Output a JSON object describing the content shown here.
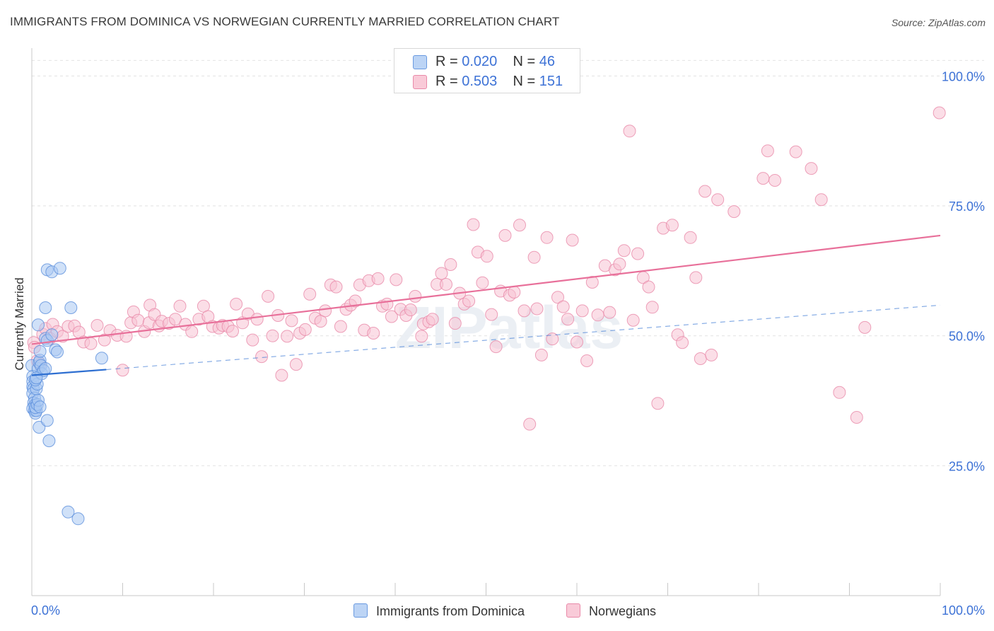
{
  "header": {
    "title": "IMMIGRANTS FROM DOMINICA VS NORWEGIAN CURRENTLY MARRIED CORRELATION CHART",
    "source": "Source: ZipAtlas.com"
  },
  "watermark": "ZIPatlas",
  "legend_top": {
    "rows": [
      {
        "r_label": "R =",
        "r_value": "0.020",
        "n_label": "N =",
        "n_value": "46"
      },
      {
        "r_label": "R =",
        "r_value": "0.503",
        "n_label": "N =",
        "n_value": "151"
      }
    ]
  },
  "legend_bottom": {
    "items": [
      "Immigrants from Dominica",
      "Norwegians"
    ]
  },
  "colors": {
    "blue_fill": "#a9c8f2",
    "blue_stroke": "#5b8fdc",
    "blue_line": "#2e6fd1",
    "pink_fill": "#f7c3d3",
    "pink_stroke": "#e98aa9",
    "pink_line": "#e8709a",
    "axis_label": "#3d72d6",
    "grid": "#e2e2e2"
  },
  "chart_data": {
    "type": "scatter",
    "title": "IMMIGRANTS FROM DOMINICA VS NORWEGIAN CURRENTLY MARRIED CORRELATION CHART",
    "xlabel": "",
    "ylabel": "Currently Married",
    "xlim": [
      0,
      100
    ],
    "ylim": [
      0,
      104
    ],
    "x_tick_labels": [
      "0.0%",
      "100.0%"
    ],
    "y_ticks": [
      25,
      50,
      75,
      100
    ],
    "y_tick_labels": [
      "25.0%",
      "50.0%",
      "75.0%",
      "100.0%"
    ],
    "grid": true,
    "legend_placement": "top-center",
    "series": [
      {
        "name": "Immigrants from Dominica",
        "R": 0.02,
        "N": 46,
        "trend": {
          "x0": 0,
          "y0": 42.4,
          "x1": 8.2,
          "y1": 43.5,
          "dashed_to_x": 100,
          "dashed_to_y": 55.9
        },
        "points": [
          [
            0.0,
            44.3
          ],
          [
            0.1,
            42.2
          ],
          [
            0.1,
            41.2
          ],
          [
            0.1,
            40.2
          ],
          [
            0.2,
            39.8
          ],
          [
            0.1,
            38.9
          ],
          [
            0.3,
            38.0
          ],
          [
            0.2,
            37.1
          ],
          [
            0.3,
            36.6
          ],
          [
            0.1,
            36.0
          ],
          [
            0.3,
            35.6
          ],
          [
            0.4,
            35.1
          ],
          [
            0.5,
            35.6
          ],
          [
            0.4,
            36.2
          ],
          [
            0.6,
            36.8
          ],
          [
            0.7,
            37.6
          ],
          [
            0.5,
            39.8
          ],
          [
            0.6,
            40.7
          ],
          [
            0.4,
            41.5
          ],
          [
            0.7,
            43.7
          ],
          [
            0.8,
            44.9
          ],
          [
            0.9,
            45.3
          ],
          [
            1.0,
            44.3
          ],
          [
            1.1,
            42.7
          ],
          [
            1.3,
            43.3
          ],
          [
            1.5,
            43.7
          ],
          [
            0.9,
            47.0
          ],
          [
            1.5,
            49.5
          ],
          [
            1.7,
            49.1
          ],
          [
            2.2,
            50.2
          ],
          [
            0.7,
            52.1
          ],
          [
            1.5,
            55.4
          ],
          [
            1.7,
            62.7
          ],
          [
            2.2,
            62.3
          ],
          [
            3.1,
            63.0
          ],
          [
            4.3,
            55.4
          ],
          [
            2.6,
            47.3
          ],
          [
            2.8,
            46.9
          ],
          [
            7.7,
            45.7
          ],
          [
            0.8,
            32.4
          ],
          [
            1.7,
            33.7
          ],
          [
            1.9,
            29.8
          ],
          [
            4.0,
            16.1
          ],
          [
            5.1,
            14.8
          ],
          [
            0.9,
            36.3
          ],
          [
            0.5,
            41.9
          ]
        ]
      },
      {
        "name": "Norwegians",
        "R": 0.503,
        "N": 151,
        "trend": {
          "x0": 0,
          "y0": 48.4,
          "x1": 100,
          "y1": 69.3
        },
        "points": [
          [
            0.2,
            48.7
          ],
          [
            0.3,
            47.8
          ],
          [
            0.6,
            45.2
          ],
          [
            0.9,
            44.5
          ],
          [
            1.2,
            50.3
          ],
          [
            1.5,
            51.4
          ],
          [
            2.0,
            49.5
          ],
          [
            2.3,
            52.2
          ],
          [
            2.8,
            50.8
          ],
          [
            3.4,
            49.9
          ],
          [
            4.0,
            51.8
          ],
          [
            4.7,
            51.9
          ],
          [
            5.2,
            50.7
          ],
          [
            5.7,
            48.8
          ],
          [
            6.5,
            48.5
          ],
          [
            7.2,
            52.0
          ],
          [
            8.0,
            49.2
          ],
          [
            8.6,
            51.0
          ],
          [
            9.4,
            50.1
          ],
          [
            10.0,
            43.4
          ],
          [
            10.4,
            49.9
          ],
          [
            10.9,
            52.5
          ],
          [
            11.2,
            54.6
          ],
          [
            11.7,
            53.0
          ],
          [
            12.4,
            50.8
          ],
          [
            12.9,
            52.5
          ],
          [
            13.0,
            55.9
          ],
          [
            13.5,
            54.1
          ],
          [
            14.0,
            51.9
          ],
          [
            14.3,
            52.8
          ],
          [
            15.1,
            52.4
          ],
          [
            15.8,
            53.2
          ],
          [
            16.3,
            55.7
          ],
          [
            16.9,
            52.2
          ],
          [
            17.6,
            50.8
          ],
          [
            18.4,
            53.2
          ],
          [
            18.9,
            55.7
          ],
          [
            19.4,
            53.7
          ],
          [
            19.9,
            51.8
          ],
          [
            20.6,
            51.5
          ],
          [
            21.0,
            52.0
          ],
          [
            21.6,
            51.8
          ],
          [
            22.1,
            50.9
          ],
          [
            22.5,
            56.1
          ],
          [
            23.2,
            52.5
          ],
          [
            23.8,
            54.2
          ],
          [
            24.3,
            49.2
          ],
          [
            24.8,
            53.2
          ],
          [
            25.3,
            46.0
          ],
          [
            26.0,
            57.6
          ],
          [
            26.5,
            50.0
          ],
          [
            27.1,
            53.9
          ],
          [
            27.5,
            42.4
          ],
          [
            28.1,
            49.9
          ],
          [
            28.6,
            52.9
          ],
          [
            29.1,
            44.5
          ],
          [
            29.5,
            50.5
          ],
          [
            30.1,
            51.2
          ],
          [
            30.6,
            58.0
          ],
          [
            31.2,
            53.4
          ],
          [
            31.8,
            52.8
          ],
          [
            32.3,
            54.8
          ],
          [
            32.9,
            59.8
          ],
          [
            33.5,
            59.4
          ],
          [
            34.0,
            51.8
          ],
          [
            34.6,
            55.1
          ],
          [
            35.1,
            55.9
          ],
          [
            35.6,
            56.7
          ],
          [
            36.1,
            59.8
          ],
          [
            36.6,
            51.1
          ],
          [
            37.1,
            60.6
          ],
          [
            37.6,
            50.5
          ],
          [
            38.1,
            61.0
          ],
          [
            38.6,
            55.7
          ],
          [
            39.1,
            56.1
          ],
          [
            39.6,
            53.7
          ],
          [
            40.1,
            60.8
          ],
          [
            40.6,
            55.1
          ],
          [
            41.2,
            53.9
          ],
          [
            41.7,
            55.0
          ],
          [
            42.2,
            57.6
          ],
          [
            42.9,
            49.9
          ],
          [
            43.1,
            52.3
          ],
          [
            43.7,
            52.7
          ],
          [
            44.1,
            53.2
          ],
          [
            44.6,
            59.9
          ],
          [
            45.1,
            62.0
          ],
          [
            45.6,
            59.9
          ],
          [
            46.1,
            63.7
          ],
          [
            46.6,
            52.4
          ],
          [
            47.1,
            58.2
          ],
          [
            47.6,
            56.1
          ],
          [
            48.1,
            56.7
          ],
          [
            48.6,
            71.4
          ],
          [
            49.1,
            66.1
          ],
          [
            49.6,
            60.2
          ],
          [
            50.1,
            65.3
          ],
          [
            50.6,
            54.1
          ],
          [
            51.1,
            47.9
          ],
          [
            51.6,
            58.6
          ],
          [
            52.1,
            69.3
          ],
          [
            52.6,
            57.8
          ],
          [
            53.1,
            58.4
          ],
          [
            53.7,
            71.3
          ],
          [
            54.2,
            54.8
          ],
          [
            54.8,
            33.0
          ],
          [
            55.3,
            65.1
          ],
          [
            55.6,
            55.2
          ],
          [
            56.1,
            46.3
          ],
          [
            56.7,
            68.9
          ],
          [
            57.3,
            49.4
          ],
          [
            57.9,
            57.4
          ],
          [
            58.5,
            55.6
          ],
          [
            59.0,
            53.2
          ],
          [
            59.5,
            68.4
          ],
          [
            60.0,
            48.8
          ],
          [
            60.6,
            54.8
          ],
          [
            61.1,
            45.2
          ],
          [
            61.7,
            60.3
          ],
          [
            62.3,
            54.0
          ],
          [
            63.1,
            63.5
          ],
          [
            63.6,
            54.5
          ],
          [
            64.2,
            62.7
          ],
          [
            64.7,
            63.8
          ],
          [
            65.2,
            66.4
          ],
          [
            65.8,
            89.4
          ],
          [
            66.2,
            53.0
          ],
          [
            66.7,
            65.8
          ],
          [
            67.3,
            61.2
          ],
          [
            67.9,
            59.4
          ],
          [
            68.3,
            55.5
          ],
          [
            68.9,
            37.0
          ],
          [
            69.5,
            70.7
          ],
          [
            70.5,
            71.3
          ],
          [
            71.1,
            50.2
          ],
          [
            71.6,
            48.7
          ],
          [
            72.5,
            68.9
          ],
          [
            73.1,
            61.2
          ],
          [
            73.6,
            45.6
          ],
          [
            74.1,
            77.8
          ],
          [
            74.8,
            46.3
          ],
          [
            75.5,
            76.2
          ],
          [
            77.3,
            73.9
          ],
          [
            80.5,
            80.3
          ],
          [
            81.0,
            85.6
          ],
          [
            81.8,
            79.9
          ],
          [
            84.1,
            85.4
          ],
          [
            85.8,
            82.2
          ],
          [
            86.9,
            76.2
          ],
          [
            88.9,
            39.1
          ],
          [
            90.8,
            34.3
          ],
          [
            91.7,
            51.6
          ],
          [
            99.9,
            92.9
          ]
        ]
      }
    ]
  }
}
